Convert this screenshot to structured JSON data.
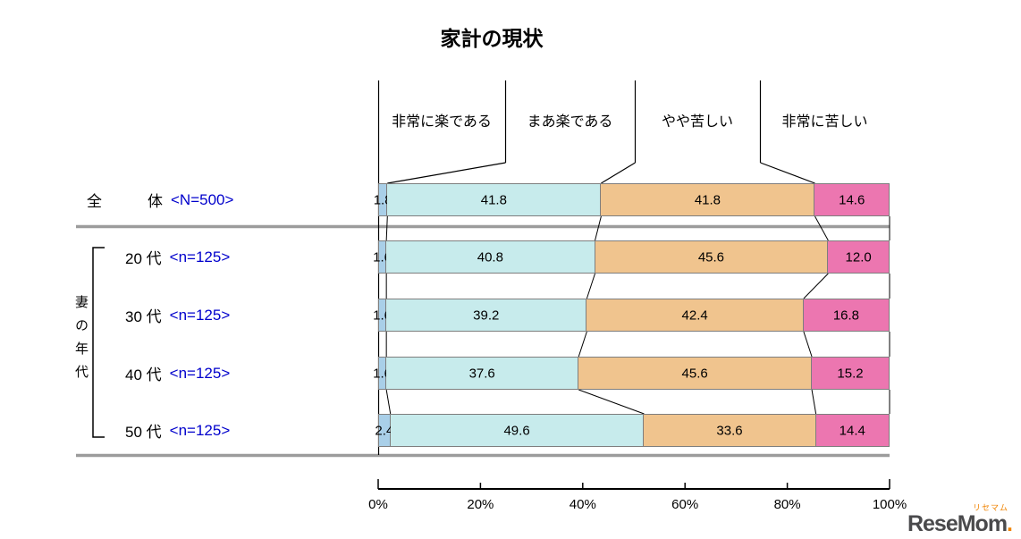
{
  "title": "家計の現状",
  "colors": {
    "sample_count_blue": "#0000cc",
    "separator_gray": "#9c9c9c",
    "line_black": "#000000",
    "logo_orange": "#f08300",
    "logo_gray": "#4a4a4c"
  },
  "chart_data": {
    "type": "stacked-bar-horizontal",
    "title": "家計の現状",
    "group_label": "妻の年代",
    "xlim": [
      0,
      100
    ],
    "x_ticks": [
      "0%",
      "20%",
      "40%",
      "60%",
      "80%",
      "100%"
    ],
    "rows": [
      {
        "label": "全　　　体",
        "n": "<N=500>"
      },
      {
        "label": "20 代",
        "n": "<n=125>"
      },
      {
        "label": "30 代",
        "n": "<n=125>"
      },
      {
        "label": "40 代",
        "n": "<n=125>"
      },
      {
        "label": "50 代",
        "n": "<n=125>"
      }
    ],
    "series": [
      {
        "name": "非常に楽である",
        "color": "#a9cfe8",
        "values": [
          1.8,
          1.6,
          1.6,
          1.6,
          2.4
        ]
      },
      {
        "name": "まあ楽である",
        "color": "#c7ebec",
        "values": [
          41.8,
          40.8,
          39.2,
          37.6,
          49.6
        ]
      },
      {
        "name": "やや苦しい",
        "color": "#f0c48e",
        "values": [
          41.8,
          45.6,
          42.4,
          45.6,
          33.6
        ]
      },
      {
        "name": "非常に苦しい",
        "color": "#ec76b0",
        "values": [
          14.6,
          12.0,
          16.8,
          15.2,
          14.4
        ]
      }
    ]
  },
  "logo": {
    "kana": "リセマム",
    "word": "ReseMom",
    "dot": "."
  }
}
